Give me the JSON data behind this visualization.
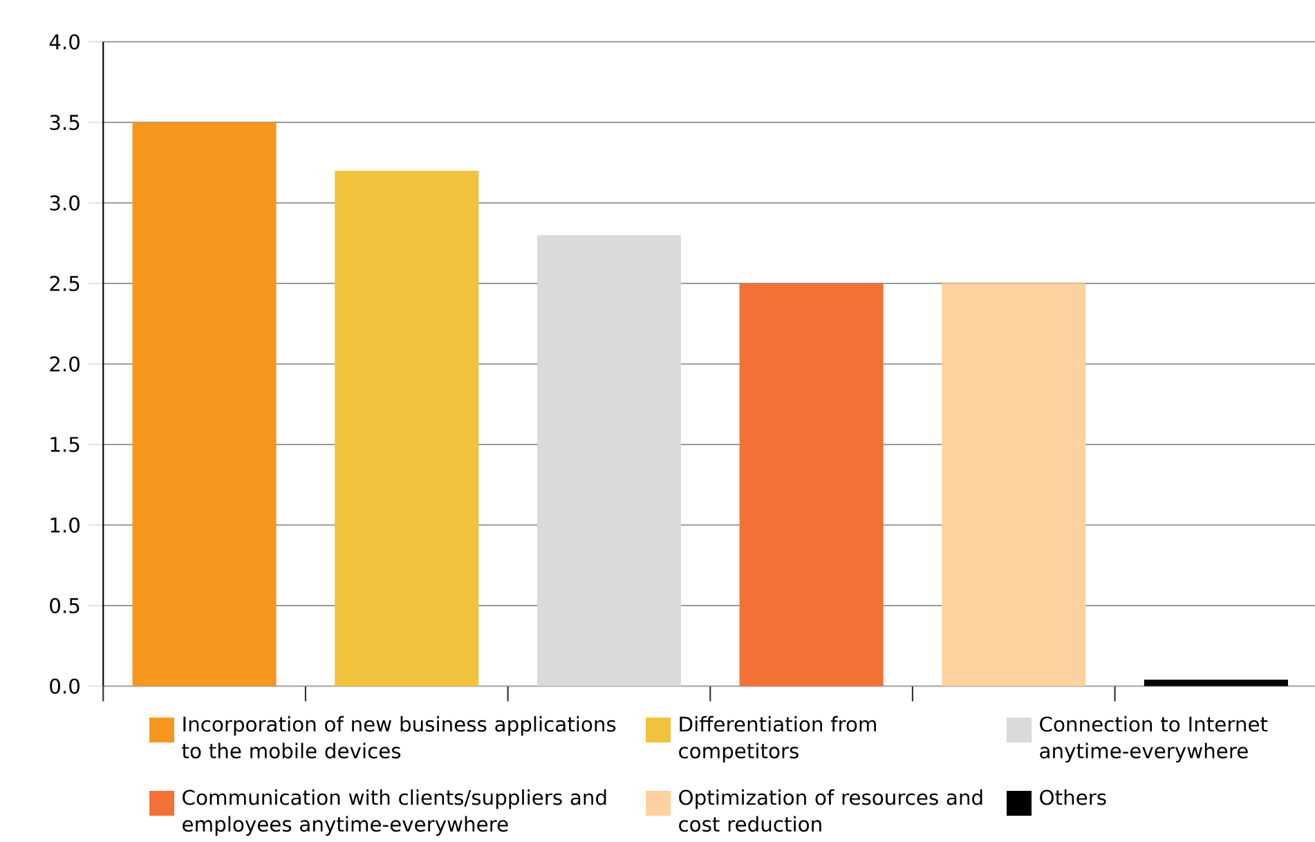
{
  "chart_data": {
    "type": "bar",
    "categories": [
      null,
      null,
      null,
      null,
      null,
      null
    ],
    "series": [
      {
        "name": "Incorporation of new business applications to the mobile devices",
        "color": "#f7971e",
        "values": [
          3.5,
          null,
          null,
          null,
          null,
          null
        ]
      },
      {
        "name": "Differentiation from competitors",
        "color": "#f1c33c",
        "values": [
          null,
          3.2,
          null,
          null,
          null,
          null
        ]
      },
      {
        "name": "Connection to Internet anytime-everywhere",
        "color": "#dbdad8",
        "values": [
          null,
          null,
          2.8,
          null,
          null,
          null
        ]
      },
      {
        "name": "Communication with clients/suppliers and employees anytime-everywhere",
        "color": "#f37135",
        "values": [
          null,
          null,
          null,
          2.5,
          null,
          null
        ]
      },
      {
        "name": "Optimization of resources and cost reduction",
        "color": "#fdd29e",
        "values": [
          null,
          null,
          null,
          null,
          2.5,
          null
        ]
      },
      {
        "name": "Others",
        "color": "#000000",
        "values": [
          null,
          null,
          null,
          null,
          null,
          0.04
        ]
      }
    ],
    "ylim": [
      0,
      4
    ],
    "yticks": [
      {
        "value": 0,
        "label": "0.0"
      },
      {
        "value": 0.5,
        "label": "0.5"
      },
      {
        "value": 1,
        "label": "1.0"
      },
      {
        "value": 1.5,
        "label": "1.5"
      },
      {
        "value": 2,
        "label": "2.0"
      },
      {
        "value": 2.5,
        "label": "2.5"
      },
      {
        "value": 3,
        "label": "3.0"
      },
      {
        "value": 3.5,
        "label": "3.5"
      },
      {
        "value": 4,
        "label": "4.0"
      }
    ],
    "grid": "y",
    "legend": "bottom"
  }
}
